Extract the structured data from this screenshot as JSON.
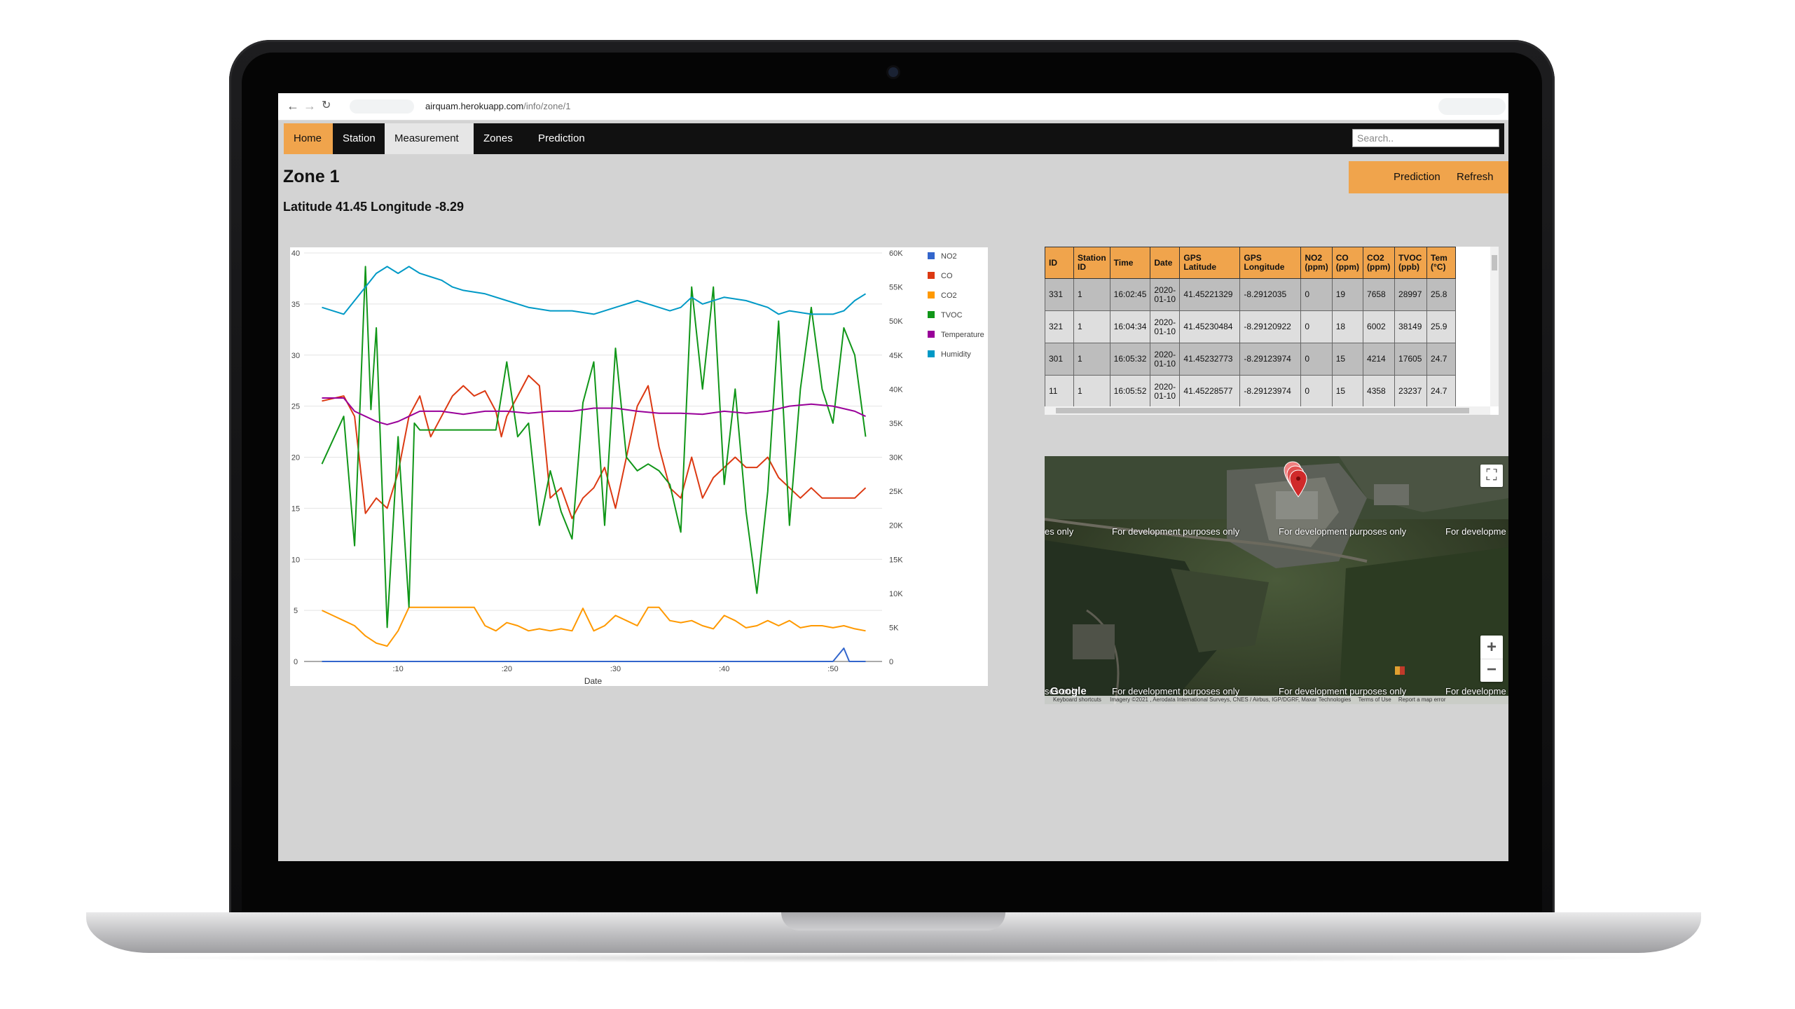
{
  "browser": {
    "url_host": "airquam.herokuapp.com",
    "url_path": "/info/zone/1"
  },
  "nav": {
    "tabs": [
      "Home",
      "Station",
      "Measurement",
      "Zones",
      "Prediction"
    ],
    "active": "Measurement",
    "search_placeholder": "Search.."
  },
  "page": {
    "title": "Zone 1",
    "coords": "Latitude 41.45 Longitude -8.29",
    "prediction_btn": "Prediction",
    "refresh_btn": "Refresh"
  },
  "chart_data": {
    "type": "line",
    "xlabel": "Date",
    "x_tick_labels": [
      ":10",
      ":20",
      ":30",
      ":40",
      ":50"
    ],
    "x_tick_positions": [
      10,
      20,
      30,
      40,
      50
    ],
    "xlim": [
      2,
      54
    ],
    "y_left": {
      "ticks": [
        0,
        5,
        10,
        15,
        20,
        25,
        30,
        35,
        40
      ],
      "range": [
        0,
        40
      ]
    },
    "y_right": {
      "ticks": [
        "0",
        "5K",
        "10K",
        "15K",
        "20K",
        "25K",
        "30K",
        "35K",
        "40K",
        "45K",
        "50K",
        "55K",
        "60K"
      ],
      "range": [
        0,
        60000
      ]
    },
    "grid": true,
    "legend_position": "right",
    "series": [
      {
        "name": "NO2",
        "color": "#3366cc",
        "axis": "left",
        "points": [
          [
            3,
            0
          ],
          [
            50,
            0
          ],
          [
            51,
            1.3
          ],
          [
            51.5,
            0
          ],
          [
            53,
            0
          ]
        ]
      },
      {
        "name": "CO",
        "color": "#dc3912",
        "axis": "left",
        "points": [
          [
            3,
            25.5
          ],
          [
            5,
            26
          ],
          [
            6,
            24
          ],
          [
            7,
            14.5
          ],
          [
            8,
            16
          ],
          [
            9,
            15
          ],
          [
            10,
            18.5
          ],
          [
            11,
            24
          ],
          [
            12,
            26
          ],
          [
            13,
            22
          ],
          [
            14,
            24
          ],
          [
            15,
            26
          ],
          [
            16,
            27
          ],
          [
            17,
            26
          ],
          [
            18,
            26.5
          ],
          [
            19,
            24.5
          ],
          [
            19.5,
            22
          ],
          [
            20,
            24
          ],
          [
            21,
            26
          ],
          [
            22,
            28
          ],
          [
            23,
            27
          ],
          [
            24,
            16
          ],
          [
            25,
            17
          ],
          [
            26,
            14
          ],
          [
            27,
            16
          ],
          [
            28,
            17
          ],
          [
            29,
            19
          ],
          [
            30,
            15
          ],
          [
            31,
            20
          ],
          [
            32,
            25
          ],
          [
            33,
            27
          ],
          [
            34,
            21
          ],
          [
            35,
            17
          ],
          [
            36,
            16
          ],
          [
            37,
            20
          ],
          [
            38,
            16
          ],
          [
            39,
            18
          ],
          [
            40,
            19
          ],
          [
            41,
            20
          ],
          [
            42,
            19
          ],
          [
            43,
            19
          ],
          [
            44,
            20
          ],
          [
            45,
            18
          ],
          [
            46,
            17
          ],
          [
            47,
            16
          ],
          [
            48,
            17
          ],
          [
            49,
            16
          ],
          [
            50,
            16
          ],
          [
            51,
            16
          ],
          [
            52,
            16
          ],
          [
            53,
            17
          ]
        ]
      },
      {
        "name": "CO2",
        "color": "#ff9900",
        "axis": "left",
        "points": [
          [
            3,
            5
          ],
          [
            4,
            4.5
          ],
          [
            5,
            4
          ],
          [
            6,
            3.5
          ],
          [
            7,
            2.5
          ],
          [
            8,
            1.8
          ],
          [
            9,
            1.5
          ],
          [
            10,
            3
          ],
          [
            11,
            5.3
          ],
          [
            12,
            5.3
          ],
          [
            13,
            5.3
          ],
          [
            14,
            5.3
          ],
          [
            15,
            5.3
          ],
          [
            16,
            5.3
          ],
          [
            17,
            5.3
          ],
          [
            18,
            3.5
          ],
          [
            19,
            3
          ],
          [
            20,
            3.8
          ],
          [
            21,
            3.5
          ],
          [
            22,
            3
          ],
          [
            23,
            3.2
          ],
          [
            24,
            3
          ],
          [
            25,
            3.2
          ],
          [
            26,
            3
          ],
          [
            27,
            5.2
          ],
          [
            28,
            3
          ],
          [
            29,
            3.5
          ],
          [
            30,
            4.5
          ],
          [
            31,
            4
          ],
          [
            32,
            3.5
          ],
          [
            33,
            5.3
          ],
          [
            34,
            5.3
          ],
          [
            35,
            4
          ],
          [
            36,
            3.8
          ],
          [
            37,
            4
          ],
          [
            38,
            3.5
          ],
          [
            39,
            3.2
          ],
          [
            40,
            4.5
          ],
          [
            41,
            4
          ],
          [
            42,
            3.3
          ],
          [
            43,
            3.5
          ],
          [
            44,
            4
          ],
          [
            45,
            3.5
          ],
          [
            46,
            4
          ],
          [
            47,
            3.3
          ],
          [
            48,
            3.5
          ],
          [
            49,
            3.5
          ],
          [
            50,
            3.3
          ],
          [
            51,
            3.5
          ],
          [
            52,
            3.2
          ],
          [
            53,
            3
          ]
        ]
      },
      {
        "name": "TVOC",
        "color": "#109618",
        "axis": "right",
        "points": [
          [
            3,
            29000
          ],
          [
            5,
            36000
          ],
          [
            6,
            17000
          ],
          [
            7,
            58000
          ],
          [
            7.5,
            37000
          ],
          [
            8,
            49000
          ],
          [
            9,
            5000
          ],
          [
            10,
            33000
          ],
          [
            11,
            8000
          ],
          [
            11.5,
            35000
          ],
          [
            12,
            34000
          ],
          [
            14,
            34000
          ],
          [
            16,
            34000
          ],
          [
            18,
            34000
          ],
          [
            19,
            34000
          ],
          [
            20,
            44000
          ],
          [
            21,
            33000
          ],
          [
            22,
            35000
          ],
          [
            23,
            20000
          ],
          [
            24,
            28000
          ],
          [
            25,
            22000
          ],
          [
            26,
            18000
          ],
          [
            27,
            38000
          ],
          [
            28,
            44000
          ],
          [
            29,
            20000
          ],
          [
            30,
            46000
          ],
          [
            31,
            30000
          ],
          [
            32,
            28000
          ],
          [
            33,
            29000
          ],
          [
            34,
            28000
          ],
          [
            35,
            26000
          ],
          [
            36,
            19000
          ],
          [
            37,
            55000
          ],
          [
            38,
            40000
          ],
          [
            39,
            55000
          ],
          [
            40,
            26000
          ],
          [
            41,
            40000
          ],
          [
            42,
            22000
          ],
          [
            43,
            10000
          ],
          [
            44,
            25000
          ],
          [
            45,
            50000
          ],
          [
            46,
            20000
          ],
          [
            47,
            40000
          ],
          [
            48,
            52000
          ],
          [
            49,
            40000
          ],
          [
            50,
            35000
          ],
          [
            51,
            49000
          ],
          [
            52,
            45000
          ],
          [
            53,
            33000
          ]
        ]
      },
      {
        "name": "Temperature",
        "color": "#990099",
        "axis": "left",
        "points": [
          [
            3,
            25.8
          ],
          [
            5,
            25.8
          ],
          [
            6,
            24.5
          ],
          [
            7,
            24
          ],
          [
            8,
            23.5
          ],
          [
            9,
            23.2
          ],
          [
            10,
            23.5
          ],
          [
            11,
            24
          ],
          [
            12,
            24.5
          ],
          [
            14,
            24.5
          ],
          [
            16,
            24.2
          ],
          [
            18,
            24.5
          ],
          [
            20,
            24.5
          ],
          [
            22,
            24.3
          ],
          [
            24,
            24.5
          ],
          [
            26,
            24.5
          ],
          [
            28,
            24.8
          ],
          [
            30,
            24.8
          ],
          [
            32,
            24.5
          ],
          [
            34,
            24.3
          ],
          [
            36,
            24.3
          ],
          [
            38,
            24.2
          ],
          [
            40,
            24.5
          ],
          [
            42,
            24.3
          ],
          [
            44,
            24.5
          ],
          [
            46,
            25
          ],
          [
            48,
            25.2
          ],
          [
            50,
            25
          ],
          [
            52,
            24.5
          ],
          [
            53,
            24
          ]
        ]
      },
      {
        "name": "Humidity",
        "color": "#0099c6",
        "axis": "right",
        "points": [
          [
            3,
            52000
          ],
          [
            5,
            51000
          ],
          [
            6,
            53000
          ],
          [
            7,
            55000
          ],
          [
            8,
            57000
          ],
          [
            9,
            58000
          ],
          [
            10,
            57000
          ],
          [
            11,
            58000
          ],
          [
            12,
            57000
          ],
          [
            13,
            56500
          ],
          [
            14,
            56000
          ],
          [
            15,
            55000
          ],
          [
            16,
            54500
          ],
          [
            18,
            54000
          ],
          [
            20,
            53000
          ],
          [
            22,
            52000
          ],
          [
            24,
            51500
          ],
          [
            26,
            51500
          ],
          [
            28,
            51000
          ],
          [
            30,
            52000
          ],
          [
            32,
            53000
          ],
          [
            34,
            52000
          ],
          [
            35,
            51500
          ],
          [
            36,
            52000
          ],
          [
            37,
            53500
          ],
          [
            38,
            52500
          ],
          [
            40,
            53500
          ],
          [
            42,
            53000
          ],
          [
            44,
            52000
          ],
          [
            45,
            51000
          ],
          [
            46,
            51500
          ],
          [
            48,
            51000
          ],
          [
            50,
            51000
          ],
          [
            51,
            51500
          ],
          [
            52,
            53000
          ],
          [
            53,
            54000
          ]
        ]
      }
    ]
  },
  "table": {
    "headers": [
      "ID",
      "Station ID",
      "Time",
      "Date",
      "GPS Latitude",
      "GPS Longitude",
      "NO2 (ppm)",
      "CO (ppm)",
      "CO2 (ppm)",
      "TVOC (ppb)",
      "Tem (°C)"
    ],
    "rows": [
      [
        "331",
        "1",
        "16:02:45",
        "2020-01-10",
        "41.45221329",
        "-8.2912035",
        "0",
        "19",
        "7658",
        "28997",
        "25.8"
      ],
      [
        "321",
        "1",
        "16:04:34",
        "2020-01-10",
        "41.45230484",
        "-8.29120922",
        "0",
        "18",
        "6002",
        "38149",
        "25.9"
      ],
      [
        "301",
        "1",
        "16:05:32",
        "2020-01-10",
        "41.45232773",
        "-8.29123974",
        "0",
        "15",
        "4214",
        "17605",
        "24.7"
      ],
      [
        "11",
        "1",
        "16:05:52",
        "2020-01-10",
        "41.45228577",
        "-8.29123974",
        "0",
        "15",
        "4358",
        "23237",
        "24.7"
      ]
    ]
  },
  "map": {
    "watermark": "For development purposes only",
    "watermark_partial_left": "es only",
    "watermark_partial_right": "For developme",
    "watermark_bottom_left": "ses only",
    "watermark_bottom_right": "For developme",
    "logo": "Google",
    "attribution": [
      "Keyboard shortcuts",
      "Imagery ©2021 , Aerodata International Surveys, CNES / Airbus, IGP/DGRF, Maxar Technologies",
      "Terms of Use",
      "Report a map error"
    ],
    "zoom_in": "+",
    "zoom_out": "−"
  }
}
